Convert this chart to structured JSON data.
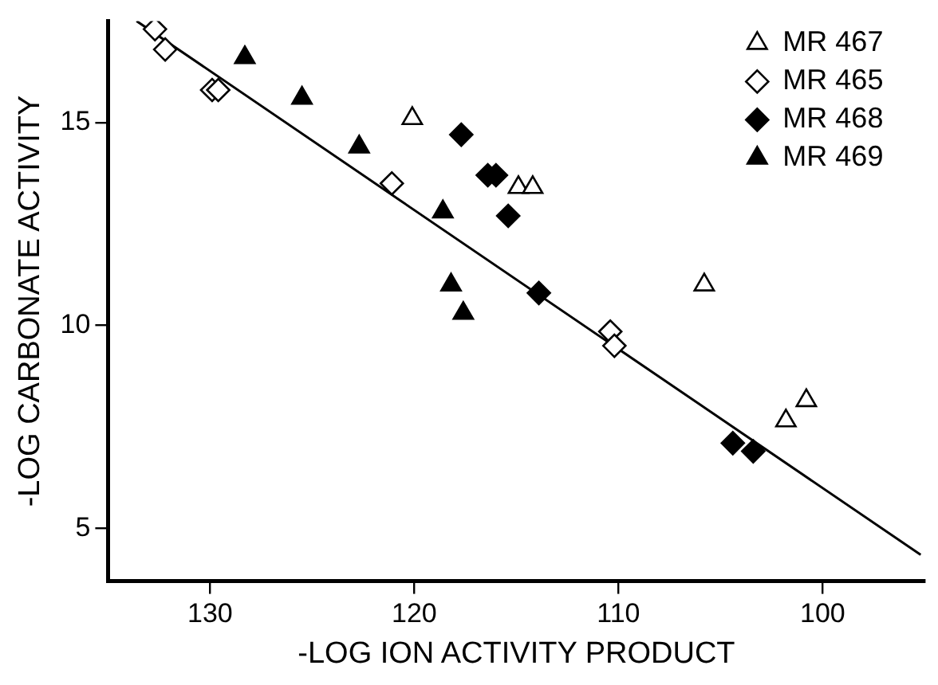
{
  "chart_data": {
    "type": "scatter",
    "xlabel": "-LOG ION ACTIVITY PRODUCT",
    "ylabel": "-LOG CARBONATE ACTIVITY",
    "xlim": [
      135,
      95
    ],
    "ylim": [
      3.7,
      17.5
    ],
    "xticks": [
      130,
      120,
      110,
      100
    ],
    "yticks": [
      5,
      10,
      15
    ],
    "grid": false,
    "legend": "top right",
    "series": [
      {
        "name": "MR 467",
        "color": "#ffffff",
        "marker": "triangle",
        "x": [
          120.1,
          114.9,
          114.2,
          105.8,
          101.8,
          100.8
        ],
        "values": [
          15.1,
          13.4,
          13.4,
          11.0,
          7.65,
          8.15
        ]
      },
      {
        "name": "MR 465",
        "color": "#ffffff",
        "marker": "diamond",
        "x": [
          132.7,
          132.2,
          129.9,
          129.6,
          121.1,
          110.4,
          110.2
        ],
        "values": [
          17.3,
          16.8,
          15.8,
          15.8,
          13.5,
          9.85,
          9.5
        ]
      },
      {
        "name": "MR 468",
        "color": "#000000",
        "marker": "diamond",
        "x": [
          117.7,
          116.4,
          116.0,
          115.4,
          113.9,
          104.4,
          103.4
        ],
        "values": [
          14.7,
          13.7,
          13.7,
          12.7,
          10.8,
          7.1,
          6.9
        ]
      },
      {
        "name": "MR 469",
        "color": "#000000",
        "marker": "triangle",
        "x": [
          128.3,
          125.5,
          122.7,
          118.6,
          118.2,
          117.6
        ],
        "values": [
          16.6,
          15.6,
          14.4,
          12.8,
          11.0,
          10.3
        ]
      },
      {
        "type": "line",
        "color": "#000000",
        "marker": "none",
        "x": [
          133.6,
          95.2
        ],
        "values": [
          17.5,
          4.35
        ]
      }
    ]
  }
}
